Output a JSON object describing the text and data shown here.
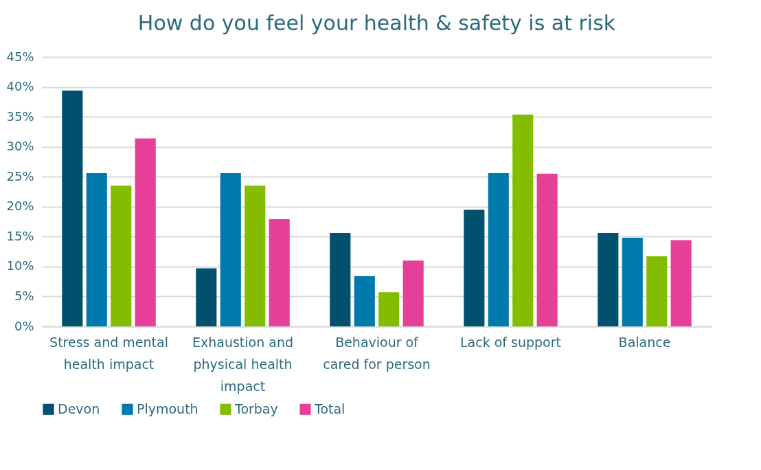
{
  "chart_data": {
    "type": "bar",
    "title": "How do you feel your health & safety is at risk",
    "categories": [
      "Stress and mental health impact",
      "Exhaustion and physical health impact",
      "Behaviour of cared for person",
      "Lack of support",
      "Balance"
    ],
    "series": [
      {
        "name": "Devon",
        "color": "#00506e",
        "values": [
          39.4,
          9.7,
          15.6,
          19.5,
          15.6
        ]
      },
      {
        "name": "Plymouth",
        "color": "#0079ad",
        "values": [
          25.6,
          25.6,
          8.4,
          25.6,
          14.8
        ]
      },
      {
        "name": "Torbay",
        "color": "#84bc00",
        "values": [
          23.5,
          23.5,
          5.7,
          35.4,
          11.7
        ]
      },
      {
        "name": "Total",
        "color": "#e63f97",
        "values": [
          31.4,
          17.9,
          11.0,
          25.5,
          14.4
        ]
      }
    ],
    "ylim": [
      0,
      45
    ],
    "yticks": [
      {
        "value": 0,
        "label": "0%"
      },
      {
        "value": 5,
        "label": "5%"
      },
      {
        "value": 10,
        "label": "10%"
      },
      {
        "value": 15,
        "label": "15%"
      },
      {
        "value": 20,
        "label": "20%"
      },
      {
        "value": 25,
        "label": "25%"
      },
      {
        "value": 30,
        "label": "30%"
      },
      {
        "value": 35,
        "label": "35%"
      },
      {
        "value": 40,
        "label": "40%"
      },
      {
        "value": 45,
        "label": "45%"
      }
    ],
    "grid": "y",
    "legend": "bottom"
  }
}
